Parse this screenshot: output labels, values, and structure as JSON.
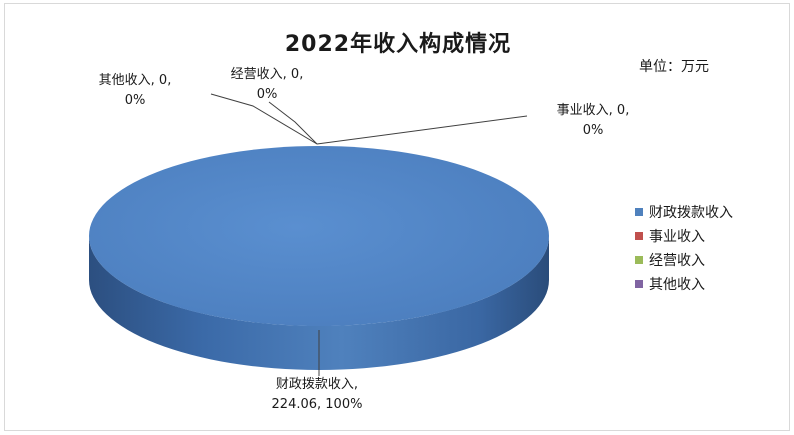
{
  "chart_data": {
    "type": "pie",
    "title": "2022年收入构成情况",
    "unit_label": "单位：万元",
    "categories": [
      "财政拨款收入",
      "事业收入",
      "经营收入",
      "其他收入"
    ],
    "values": [
      224.06,
      0,
      0,
      0
    ],
    "percents": [
      "100%",
      "0%",
      "0%",
      "0%"
    ],
    "colors": [
      "#4f81bd",
      "#c0504d",
      "#9bbb59",
      "#8064a2"
    ],
    "data_labels": [
      {
        "line1": "财政拨款收入,",
        "line2": "224.06, 100%"
      },
      {
        "line1": "事业收入, 0,",
        "line2": "0%"
      },
      {
        "line1": "经营收入, 0,",
        "line2": "0%"
      },
      {
        "line1": "其他收入, 0,",
        "line2": "0%"
      }
    ],
    "legend_position": "right",
    "style": "3d"
  }
}
